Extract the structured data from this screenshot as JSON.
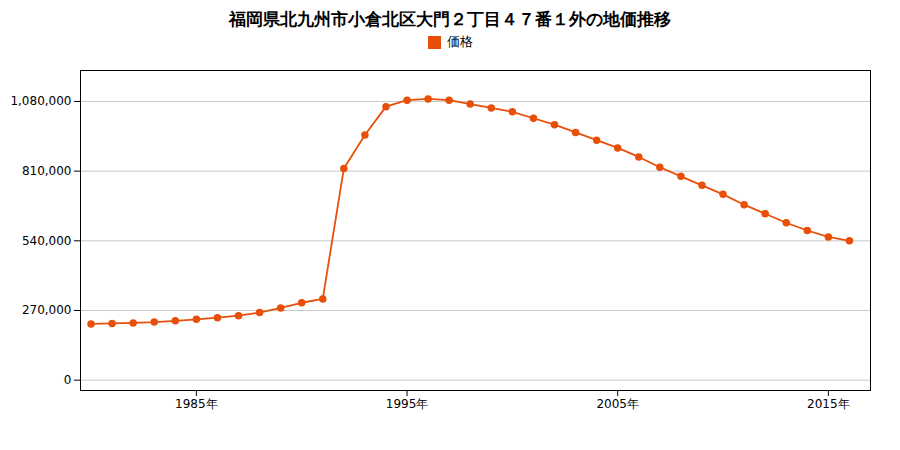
{
  "chart_data": {
    "type": "line",
    "title": "福岡県北九州市小倉北区大門２丁目４７番１外の地価推移",
    "x": [
      1980,
      1981,
      1982,
      1983,
      1984,
      1985,
      1986,
      1987,
      1988,
      1989,
      1990,
      1991,
      1992,
      1993,
      1994,
      1995,
      1996,
      1997,
      1998,
      1999,
      2000,
      2001,
      2002,
      2003,
      2004,
      2005,
      2006,
      2007,
      2008,
      2009,
      2010,
      2011,
      2012,
      2013,
      2014,
      2015,
      2016
    ],
    "series": [
      {
        "name": "価格",
        "color": "#E8500A",
        "marker": "circle",
        "values": [
          218000,
          220000,
          222000,
          225000,
          230000,
          236000,
          242000,
          250000,
          262000,
          280000,
          300000,
          315000,
          820000,
          950000,
          1060000,
          1085000,
          1090000,
          1085000,
          1070000,
          1055000,
          1040000,
          1015000,
          990000,
          960000,
          930000,
          900000,
          865000,
          825000,
          790000,
          755000,
          720000,
          680000,
          645000,
          610000,
          580000,
          555000,
          540000
        ]
      }
    ],
    "xlim": [
      1979.5,
      2017
    ],
    "xticks": [
      {
        "value": 1985,
        "label": "1985年"
      },
      {
        "value": 1995,
        "label": "1995年"
      },
      {
        "value": 2005,
        "label": "2005年"
      },
      {
        "value": 2015,
        "label": "2015年"
      }
    ],
    "ylim": [
      -40000,
      1200000
    ],
    "yticks": [
      0,
      {
        "value": 270000,
        "label": "270,000"
      },
      {
        "value": 540000,
        "label": "540,000"
      },
      {
        "value": 810000,
        "label": "810,000"
      },
      {
        "value": 1080000,
        "label": "1,080,000"
      }
    ],
    "grid": "y",
    "legend": "top"
  }
}
